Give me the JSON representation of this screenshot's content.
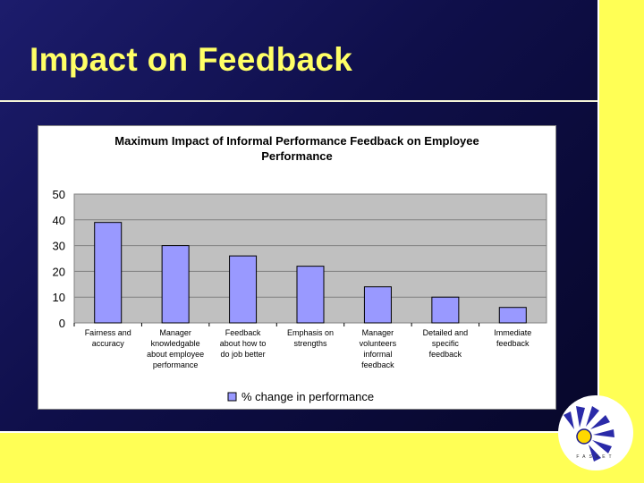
{
  "slide": {
    "title": "Impact on Feedback",
    "logo_text": "FASSET"
  },
  "colors": {
    "background": "#12124f",
    "accent_yellow": "#ffff55",
    "title": "#ffff66",
    "bar_fill": "#9999ff",
    "plot_bg": "#c0c0c0"
  },
  "chart_data": {
    "type": "bar",
    "title": "Maximum Impact of Informal Performance Feedback on Employee Performance",
    "categories": [
      [
        "Fairness and",
        "accuracy"
      ],
      [
        "Manager",
        "knowledgable",
        "about employee",
        "performance"
      ],
      [
        "Feedback",
        "about how to",
        "do job better"
      ],
      [
        "Emphasis on",
        "strengths"
      ],
      [
        "Manager",
        "volunteers",
        "informal",
        "feedback"
      ],
      [
        "Detailed and",
        "specific",
        "feedback"
      ],
      [
        "Immediate",
        "feedback"
      ]
    ],
    "series": [
      {
        "name": "% change in performance",
        "values": [
          39,
          30,
          26,
          22,
          14,
          10,
          6
        ]
      }
    ],
    "ylim": [
      0,
      50
    ],
    "yticks": [
      0,
      10,
      20,
      30,
      40,
      50
    ],
    "grid": true,
    "legend": "bottom"
  }
}
